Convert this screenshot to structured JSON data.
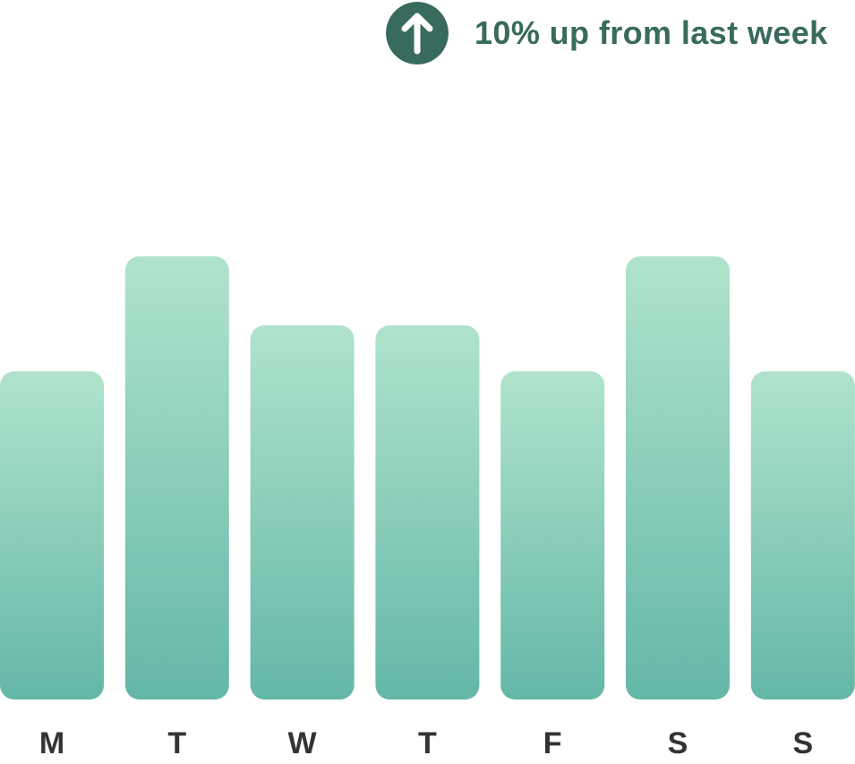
{
  "trend": {
    "icon": "arrow-up-icon",
    "text": "10% up from last week",
    "color": "#386a5d"
  },
  "chart_data": {
    "type": "bar",
    "categories": [
      "M",
      "T",
      "W",
      "T",
      "F",
      "S",
      "S"
    ],
    "values": [
      5,
      6.75,
      5.7,
      5.7,
      5,
      6.75,
      5
    ],
    "ylim": [
      0,
      10
    ],
    "grid": false,
    "colors": {
      "bar_top": "#b0e3cc",
      "bar_bottom": "#64b7a8",
      "label": "#333333"
    }
  }
}
